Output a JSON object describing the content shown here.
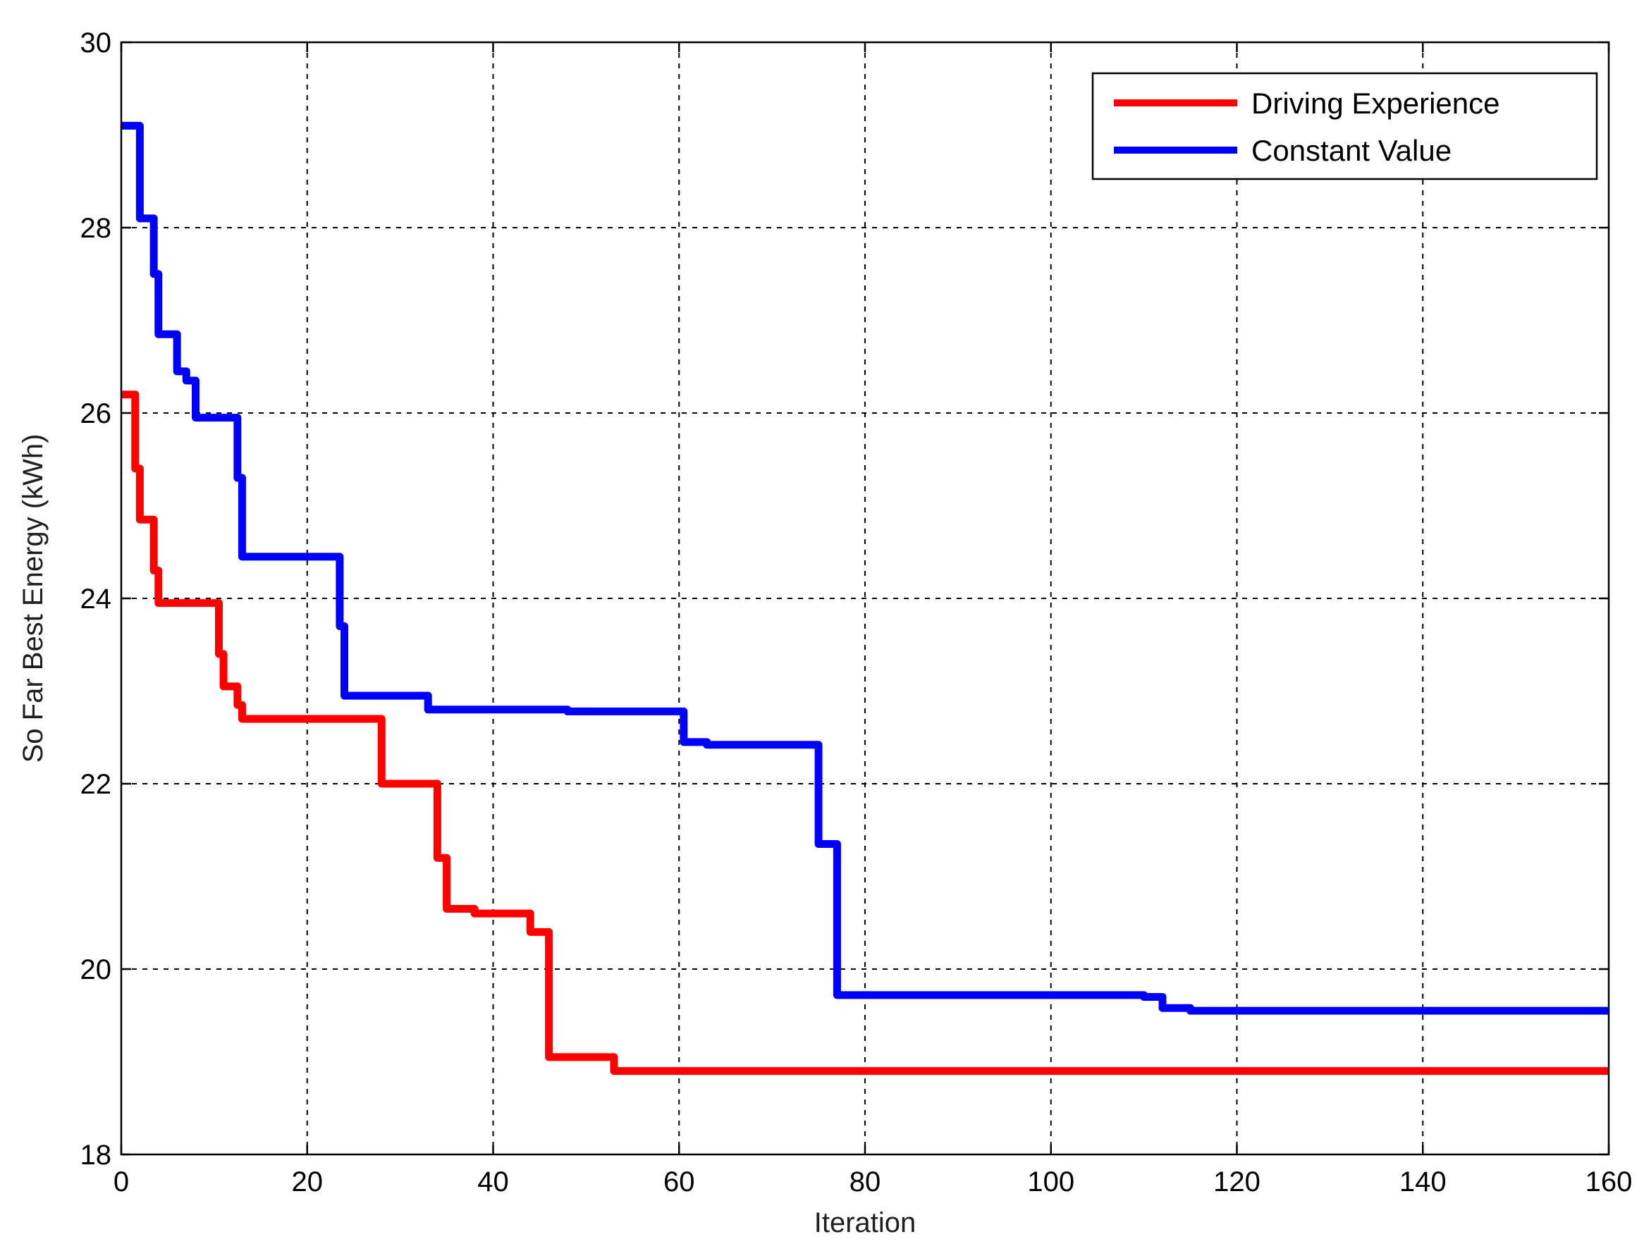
{
  "chart_data": {
    "type": "line",
    "title": "",
    "xlabel": "Iteration",
    "ylabel": "So Far Best Energy (kWh)",
    "xlim": [
      0,
      160
    ],
    "ylim": [
      18,
      30
    ],
    "xticks": [
      0,
      20,
      40,
      60,
      80,
      100,
      120,
      140,
      160
    ],
    "yticks": [
      18,
      20,
      22,
      24,
      26,
      28,
      30
    ],
    "xtick_labels": [
      "0",
      "20",
      "40",
      "60",
      "80",
      "100",
      "120",
      "140",
      "160"
    ],
    "ytick_labels": [
      "18",
      "20",
      "22",
      "24",
      "26",
      "28",
      "30"
    ],
    "grid": true,
    "legend_position": "top-right",
    "series": [
      {
        "name": "Driving Experience",
        "color": "#ff0000",
        "step": true,
        "x": [
          0,
          1,
          1.5,
          2,
          3,
          3.5,
          4,
          8,
          9.5,
          10.5,
          11,
          12,
          12.5,
          13,
          20,
          27,
          28,
          33,
          34,
          35,
          38,
          42.5,
          44,
          45,
          46,
          52,
          53,
          60,
          160
        ],
        "y": [
          26.2,
          26.2,
          25.4,
          24.85,
          24.85,
          24.3,
          23.95,
          23.95,
          23.95,
          23.4,
          23.05,
          23.05,
          22.85,
          22.7,
          22.7,
          22.7,
          22.0,
          22.0,
          21.2,
          20.65,
          20.6,
          20.6,
          20.4,
          20.4,
          19.05,
          19.05,
          18.9,
          18.9,
          18.9
        ]
      },
      {
        "name": "Constant Value",
        "color": "#0000ff",
        "step": true,
        "x": [
          0,
          1,
          2,
          3,
          3.5,
          4,
          5,
          6,
          7,
          8,
          12,
          12.5,
          13,
          20,
          23,
          23.5,
          24,
          25,
          31,
          33,
          40,
          47,
          48,
          59.5,
          60.5,
          61,
          63,
          70,
          74,
          75,
          76,
          77,
          90,
          100,
          110,
          112,
          115,
          160
        ],
        "y": [
          29.1,
          29.1,
          28.1,
          28.1,
          27.5,
          26.85,
          26.85,
          26.45,
          26.35,
          25.95,
          25.95,
          25.3,
          24.45,
          24.45,
          24.45,
          23.7,
          22.95,
          22.95,
          22.95,
          22.8,
          22.8,
          22.8,
          22.78,
          22.78,
          22.45,
          22.45,
          22.42,
          22.42,
          22.42,
          21.35,
          21.35,
          19.72,
          19.72,
          19.72,
          19.7,
          19.58,
          19.55,
          19.55
        ]
      }
    ]
  }
}
